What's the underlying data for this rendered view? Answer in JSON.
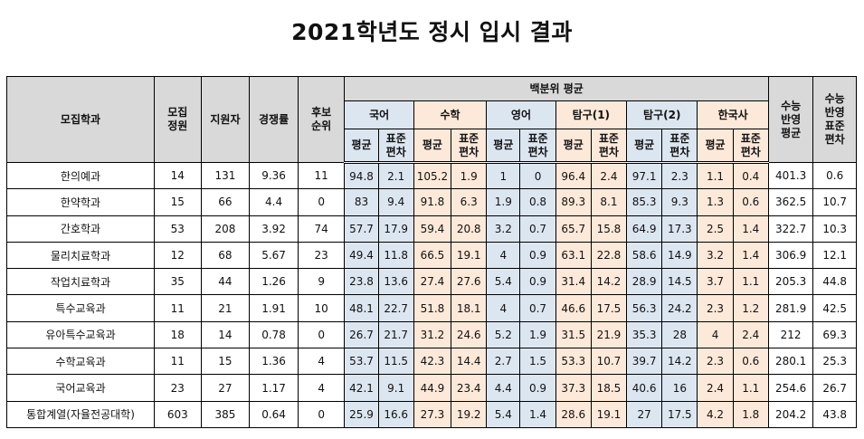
{
  "title": "2021학년도 정시 입시 결과",
  "headers": {
    "dept": "모집학과",
    "quota": "모집\n정원",
    "applicants": "지원자",
    "ratio": "경쟁률",
    "waitlist": "후보\n순위",
    "percentile_avg": "백분위 평균",
    "subjects": [
      "국어",
      "수학",
      "영어",
      "탐구(1)",
      "탐구(2)",
      "한국사"
    ],
    "avg": "평균",
    "sd": "표준\n편차",
    "suneung_avg": "수능\n반영\n평균",
    "suneung_sd": "수능\n반영\n표준\n편차"
  },
  "colors": {
    "header_bg": "#d9d9d9",
    "blue": "#dce6f1",
    "peach": "#fde9d9"
  },
  "rows": [
    {
      "dept": "한의예과",
      "quota": "14",
      "applicants": "131",
      "ratio": "9.36",
      "waitlist": "11",
      "scores": [
        "94.8",
        "2.1",
        "105.2",
        "1.9",
        "1",
        "0",
        "96.4",
        "2.4",
        "97.1",
        "2.3",
        "1.1",
        "0.4"
      ],
      "total_avg": "401.3",
      "total_sd": "0.6"
    },
    {
      "dept": "한약학과",
      "quota": "15",
      "applicants": "66",
      "ratio": "4.4",
      "waitlist": "0",
      "scores": [
        "83",
        "9.4",
        "91.8",
        "6.3",
        "1.9",
        "0.8",
        "89.3",
        "8.1",
        "85.3",
        "9.3",
        "1.3",
        "0.6"
      ],
      "total_avg": "362.5",
      "total_sd": "10.7"
    },
    {
      "dept": "간호학과",
      "quota": "53",
      "applicants": "208",
      "ratio": "3.92",
      "waitlist": "74",
      "scores": [
        "57.7",
        "17.9",
        "59.4",
        "20.8",
        "3.2",
        "0.7",
        "65.7",
        "15.8",
        "64.9",
        "17.3",
        "2.5",
        "1.4"
      ],
      "total_avg": "322.7",
      "total_sd": "10.3"
    },
    {
      "dept": "물리치료학과",
      "quota": "12",
      "applicants": "68",
      "ratio": "5.67",
      "waitlist": "23",
      "scores": [
        "49.4",
        "11.8",
        "66.5",
        "19.1",
        "4",
        "0.9",
        "63.1",
        "22.8",
        "58.6",
        "14.9",
        "3.2",
        "1.4"
      ],
      "total_avg": "306.9",
      "total_sd": "12.1"
    },
    {
      "dept": "작업치료학과",
      "quota": "35",
      "applicants": "44",
      "ratio": "1.26",
      "waitlist": "9",
      "scores": [
        "23.8",
        "13.6",
        "27.4",
        "27.6",
        "5.4",
        "0.9",
        "31.4",
        "14.2",
        "28.9",
        "14.5",
        "3.7",
        "1.1"
      ],
      "total_avg": "205.3",
      "total_sd": "44.8"
    },
    {
      "dept": "특수교육과",
      "quota": "11",
      "applicants": "21",
      "ratio": "1.91",
      "waitlist": "10",
      "scores": [
        "48.1",
        "22.7",
        "51.8",
        "18.1",
        "4",
        "0.7",
        "46.6",
        "17.5",
        "56.3",
        "24.2",
        "2.3",
        "1.2"
      ],
      "total_avg": "281.9",
      "total_sd": "42.5"
    },
    {
      "dept": "유아특수교육과",
      "quota": "18",
      "applicants": "14",
      "ratio": "0.78",
      "waitlist": "0",
      "scores": [
        "26.7",
        "21.7",
        "31.2",
        "24.6",
        "5.2",
        "1.9",
        "31.5",
        "21.9",
        "35.3",
        "28",
        "4",
        "2.4"
      ],
      "total_avg": "212",
      "total_sd": "69.3"
    },
    {
      "dept": "수학교육과",
      "quota": "11",
      "applicants": "15",
      "ratio": "1.36",
      "waitlist": "4",
      "scores": [
        "53.7",
        "11.5",
        "42.3",
        "14.4",
        "2.7",
        "1.5",
        "53.3",
        "10.7",
        "39.7",
        "14.2",
        "2.3",
        "0.6"
      ],
      "total_avg": "280.1",
      "total_sd": "25.3"
    },
    {
      "dept": "국어교육과",
      "quota": "23",
      "applicants": "27",
      "ratio": "1.17",
      "waitlist": "4",
      "scores": [
        "42.1",
        "9.1",
        "44.9",
        "23.4",
        "4.4",
        "0.9",
        "37.3",
        "18.5",
        "40.6",
        "16",
        "2.4",
        "1.1"
      ],
      "total_avg": "254.6",
      "total_sd": "26.7"
    },
    {
      "dept": "통합계열(자율전공대학)",
      "quota": "603",
      "applicants": "385",
      "ratio": "0.64",
      "waitlist": "0",
      "scores": [
        "25.9",
        "16.6",
        "27.3",
        "19.2",
        "5.4",
        "1.4",
        "28.6",
        "19.1",
        "27",
        "17.5",
        "4.2",
        "1.8"
      ],
      "total_avg": "204.2",
      "total_sd": "43.8"
    }
  ]
}
